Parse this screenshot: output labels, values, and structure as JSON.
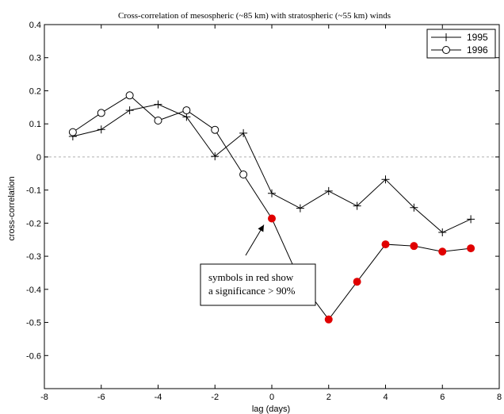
{
  "chart_data": {
    "type": "line",
    "title": "Cross-correlation of mesospheric (~85 km) with stratospheric (~55 km) winds",
    "xlabel": "lag (days)",
    "ylabel": "cross-correlation",
    "xlim": [
      -8,
      8
    ],
    "ylim": [
      -0.7,
      0.4
    ],
    "xticks": [
      -8,
      -6,
      -4,
      -2,
      0,
      2,
      4,
      6,
      8
    ],
    "yticks": [
      0.4,
      0.3,
      0.2,
      0.1,
      0,
      -0.1,
      -0.2,
      -0.3,
      -0.4,
      -0.5,
      -0.6
    ],
    "reference_line": {
      "y": 0,
      "style": "dashed",
      "color": "#b0b0b0"
    },
    "legend_position": "top-right",
    "significance_color": "#e00000",
    "series": [
      {
        "name": "1995",
        "marker": "plus",
        "color": "#000000",
        "x": [
          -7,
          -6,
          -5,
          -4,
          -3,
          -2,
          -1,
          0,
          1,
          2,
          3,
          4,
          5,
          6,
          7
        ],
        "values": [
          0.062,
          0.083,
          0.141,
          0.159,
          0.121,
          0.002,
          0.072,
          -0.11,
          -0.155,
          -0.103,
          -0.148,
          -0.068,
          -0.153,
          -0.228,
          -0.188
        ],
        "significant": [
          false,
          false,
          false,
          false,
          false,
          false,
          false,
          false,
          false,
          false,
          false,
          false,
          false,
          false,
          false
        ]
      },
      {
        "name": "1996",
        "marker": "circle",
        "color": "#000000",
        "x": [
          -7,
          -6,
          -5,
          -4,
          -3,
          -2,
          -1,
          0,
          1,
          2,
          3,
          4,
          5,
          6,
          7
        ],
        "values": [
          0.075,
          0.133,
          0.186,
          0.11,
          0.141,
          0.082,
          -0.053,
          -0.186,
          -0.376,
          -0.491,
          -0.377,
          -0.264,
          -0.269,
          -0.286,
          -0.276
        ],
        "significant": [
          false,
          false,
          false,
          false,
          false,
          false,
          false,
          true,
          true,
          true,
          true,
          true,
          true,
          true,
          true
        ]
      }
    ],
    "annotation": {
      "lines": [
        "symbols in red show",
        "a significance > 90%"
      ],
      "arrow_target": {
        "x": 0,
        "y": -0.186
      }
    }
  }
}
